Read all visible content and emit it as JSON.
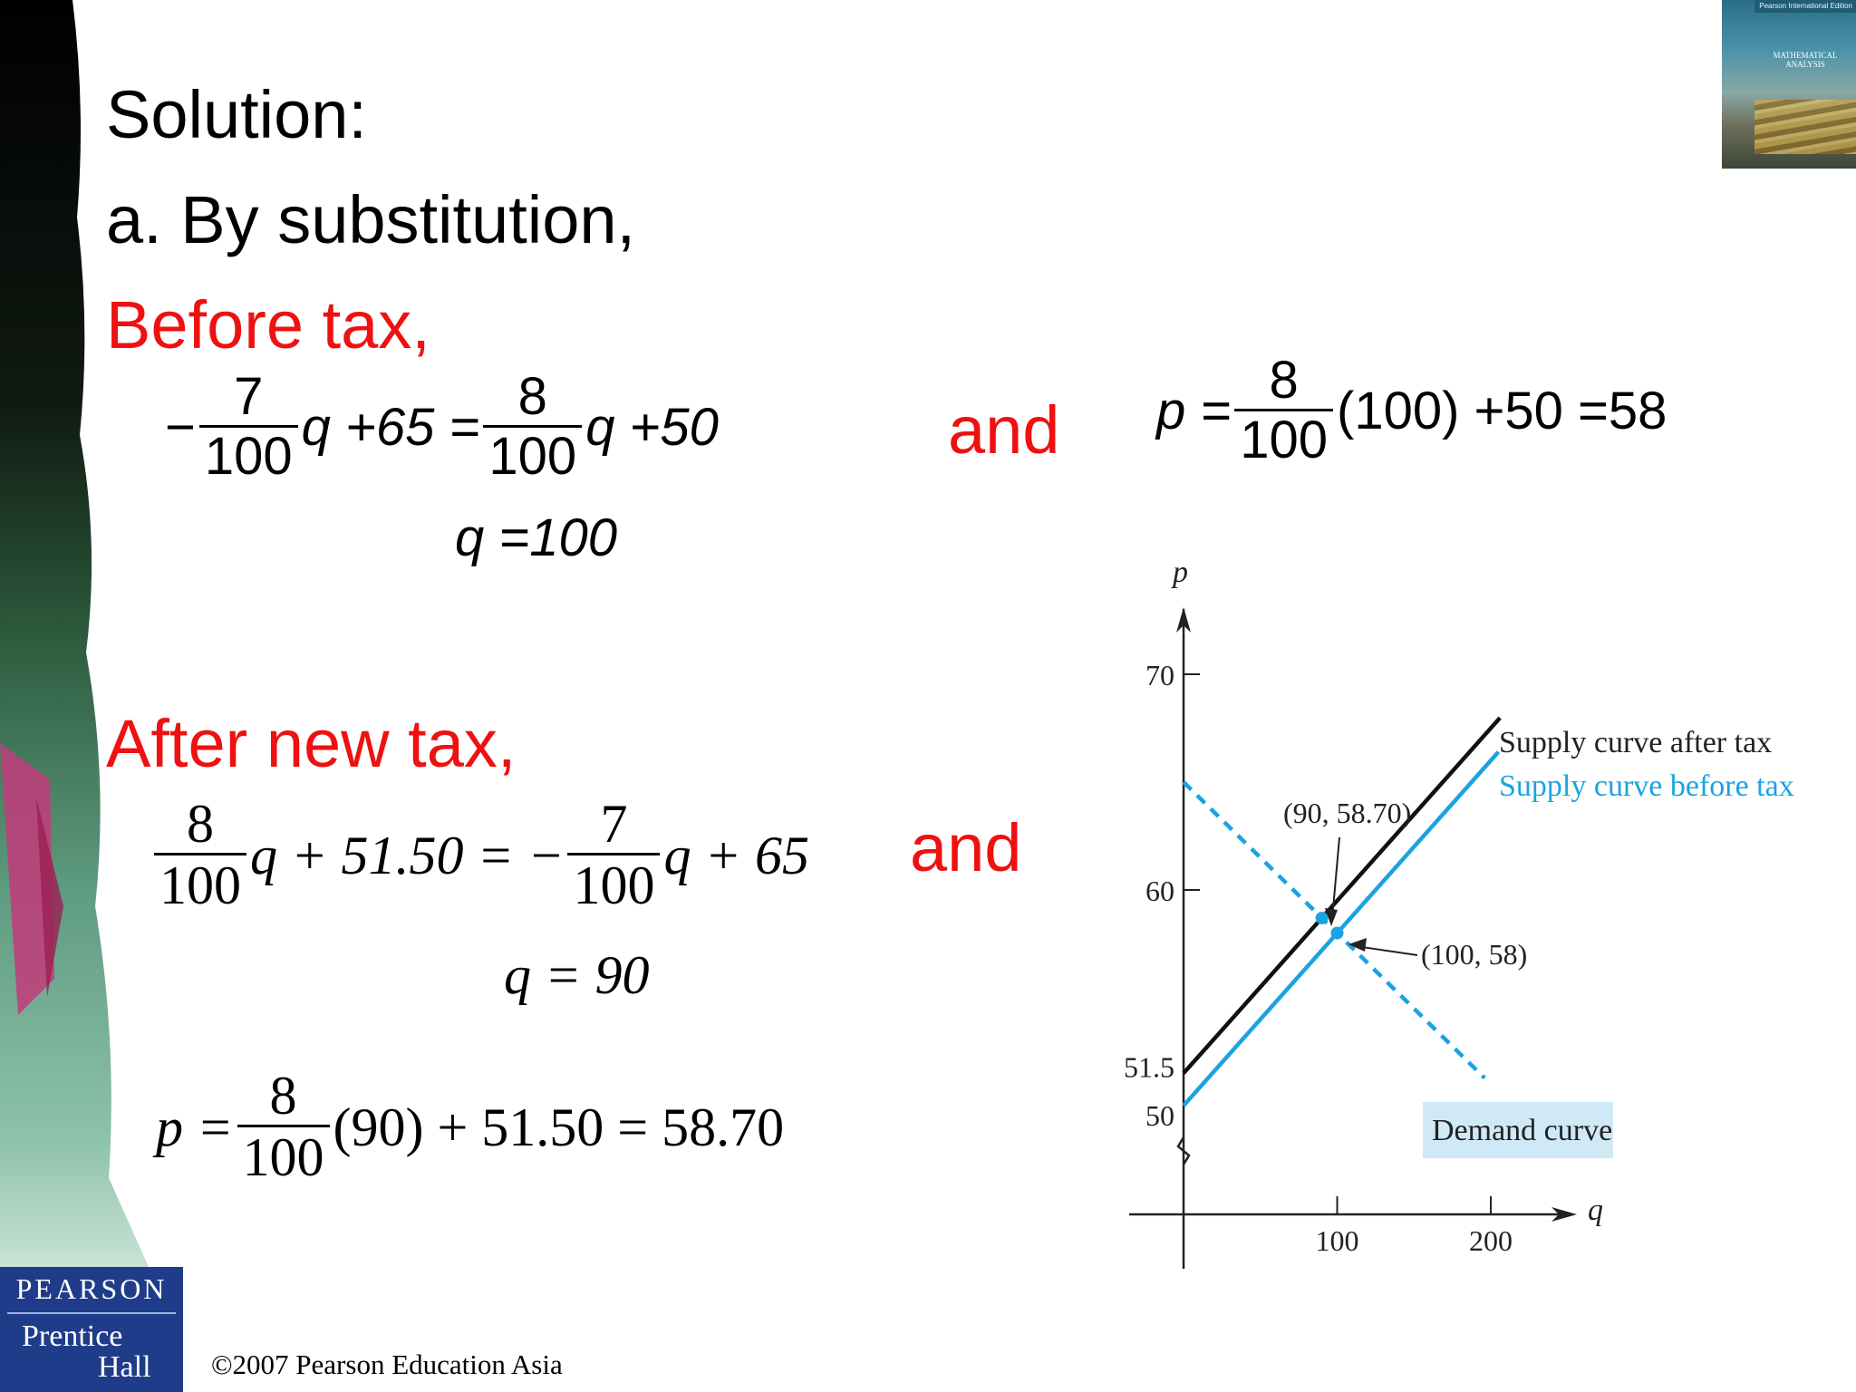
{
  "heading": {
    "solution": "Solution:",
    "part_a": "a.  By substitution,"
  },
  "before_tax": {
    "label": "Before tax,",
    "eq1": {
      "minus": "−",
      "frac1_num": "7",
      "frac1_den": "100",
      "mid1": "q +65 =",
      "frac2_num": "8",
      "frac2_den": "100",
      "tail": "q +50"
    },
    "eq2": "q =100",
    "and": "and",
    "eq3": {
      "lhs": "p =",
      "frac_num": "8",
      "frac_den": "100",
      "tail": "(100) +50 =58"
    }
  },
  "after_tax": {
    "label": "After new tax,",
    "eq1": {
      "frac1_num": "8",
      "frac1_den": "100",
      "mid1": "q + 51.50 = −",
      "frac2_num": "7",
      "frac2_den": "100",
      "tail": "q + 65"
    },
    "eq2": "q = 90",
    "and": "and",
    "eq3": {
      "lhs": "p =",
      "frac_num": "8",
      "frac_den": "100",
      "tail": "(90) + 51.50 = 58.70"
    }
  },
  "graph": {
    "y_axis_label": "p",
    "x_axis_label": "q",
    "y_ticks": [
      "70",
      "60",
      "51.5",
      "50"
    ],
    "x_ticks": [
      "100",
      "200"
    ],
    "legend_after": "Supply curve after tax",
    "legend_before": "Supply curve before tax",
    "point_after_label": "(90, 58.70)",
    "point_before_label": "(100, 58)",
    "demand_label": "Demand curve",
    "colors": {
      "after": "#111111",
      "before": "#1aa3e0",
      "demand": "#1aa3e0",
      "demand_box": "#cfe9f7"
    },
    "lines": {
      "supply_after": {
        "intercept": 51.5,
        "slope": 0.08
      },
      "supply_before": {
        "intercept": 50,
        "slope": 0.08
      },
      "demand": {
        "intercept": 65,
        "slope": -0.07
      }
    },
    "points": [
      {
        "q": 90,
        "p": 58.7
      },
      {
        "q": 100,
        "p": 58
      }
    ]
  },
  "footer": {
    "logo_top": "PEARSON",
    "logo_bottom_1": "Prentice",
    "logo_bottom_2": "Hall",
    "copyright": "©2007 Pearson Education Asia"
  },
  "cover": {
    "top_text": "Pearson International Edition",
    "title": "MATHEMATICAL ANALYSIS"
  }
}
